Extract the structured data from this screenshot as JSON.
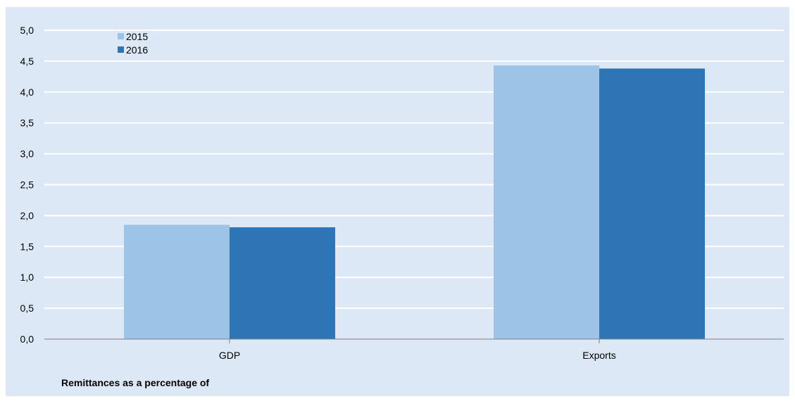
{
  "chart_data": {
    "type": "bar",
    "title": "",
    "xlabel": "Remittances  as a percentage of",
    "ylabel": "",
    "categories": [
      "GDP",
      "Exports"
    ],
    "series": [
      {
        "name": "2015",
        "values": [
          1.85,
          4.43
        ],
        "color": "#9dc3e6"
      },
      {
        "name": "2016",
        "values": [
          1.81,
          4.38
        ],
        "color": "#2e75b6"
      }
    ],
    "ylim": [
      0,
      5
    ],
    "yticks": [
      "0,0",
      "0,5",
      "1,0",
      "1,5",
      "2,0",
      "2,5",
      "3,0",
      "3,5",
      "4,0",
      "4,5",
      "5,0"
    ],
    "grid": true,
    "legend_position": "top-left",
    "background_color": "#dce8f5",
    "gridline_color": "#ffffff",
    "axis_color": "#808080"
  }
}
